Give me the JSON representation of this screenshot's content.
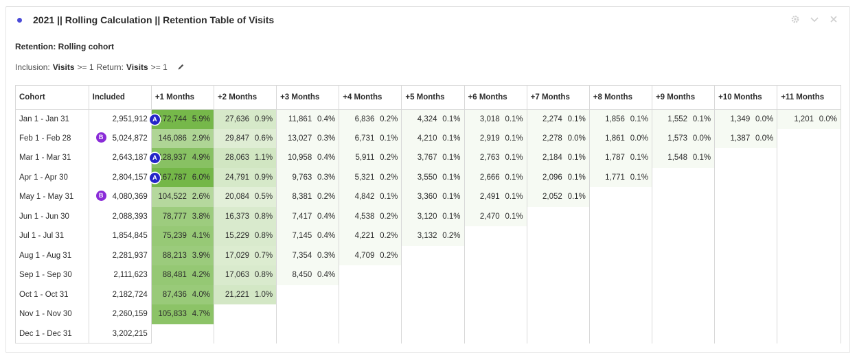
{
  "panel": {
    "title": "2021 || Rolling Calculation || Retention Table of Visits",
    "icons": [
      "gear-icon",
      "chevron-down-icon",
      "close-icon"
    ]
  },
  "retention": {
    "subtitle": "Retention: Rolling cohort",
    "inclusion_label": "Inclusion:",
    "inclusion_metric": "Visits",
    "inclusion_cond": ">= 1",
    "return_label": "Return:",
    "return_metric": "Visits",
    "return_cond": ">= 1"
  },
  "table": {
    "headers": [
      "Cohort",
      "Included",
      "+1 Months",
      "+2 Months",
      "+3 Months",
      "+4 Months",
      "+5 Months",
      "+6 Months",
      "+7 Months",
      "+8 Months",
      "+9 Months",
      "+10 Months",
      "+11 Months"
    ],
    "rows": [
      {
        "cohort": "Jan 1 - Jan 31",
        "included": "2,951,912",
        "badge": "",
        "cells": [
          [
            "172,744",
            "5.9%",
            "A"
          ],
          [
            "27,636",
            "0.9%",
            ""
          ],
          [
            "11,861",
            "0.4%",
            ""
          ],
          [
            "6,836",
            "0.2%",
            ""
          ],
          [
            "4,324",
            "0.1%",
            ""
          ],
          [
            "3,018",
            "0.1%",
            ""
          ],
          [
            "2,274",
            "0.1%",
            ""
          ],
          [
            "1,856",
            "0.1%",
            ""
          ],
          [
            "1,552",
            "0.1%",
            ""
          ],
          [
            "1,349",
            "0.0%",
            ""
          ],
          [
            "1,201",
            "0.0%",
            ""
          ]
        ]
      },
      {
        "cohort": "Feb 1 - Feb 28",
        "included": "5,024,872",
        "badge": "B",
        "cells": [
          [
            "146,086",
            "2.9%",
            ""
          ],
          [
            "29,847",
            "0.6%",
            ""
          ],
          [
            "13,027",
            "0.3%",
            ""
          ],
          [
            "6,731",
            "0.1%",
            ""
          ],
          [
            "4,210",
            "0.1%",
            ""
          ],
          [
            "2,919",
            "0.1%",
            ""
          ],
          [
            "2,278",
            "0.0%",
            ""
          ],
          [
            "1,861",
            "0.0%",
            ""
          ],
          [
            "1,573",
            "0.0%",
            ""
          ],
          [
            "1,387",
            "0.0%",
            ""
          ]
        ]
      },
      {
        "cohort": "Mar 1 - Mar 31",
        "included": "2,643,187",
        "badge": "",
        "cells": [
          [
            "128,937",
            "4.9%",
            "A"
          ],
          [
            "28,063",
            "1.1%",
            ""
          ],
          [
            "10,958",
            "0.4%",
            ""
          ],
          [
            "5,911",
            "0.2%",
            ""
          ],
          [
            "3,767",
            "0.1%",
            ""
          ],
          [
            "2,763",
            "0.1%",
            ""
          ],
          [
            "2,184",
            "0.1%",
            ""
          ],
          [
            "1,787",
            "0.1%",
            ""
          ],
          [
            "1,548",
            "0.1%",
            ""
          ]
        ]
      },
      {
        "cohort": "Apr 1 - Apr 30",
        "included": "2,804,157",
        "badge": "",
        "cells": [
          [
            "167,787",
            "6.0%",
            "A"
          ],
          [
            "24,791",
            "0.9%",
            ""
          ],
          [
            "9,763",
            "0.3%",
            ""
          ],
          [
            "5,321",
            "0.2%",
            ""
          ],
          [
            "3,550",
            "0.1%",
            ""
          ],
          [
            "2,666",
            "0.1%",
            ""
          ],
          [
            "2,096",
            "0.1%",
            ""
          ],
          [
            "1,771",
            "0.1%",
            ""
          ]
        ]
      },
      {
        "cohort": "May 1 - May 31",
        "included": "4,080,369",
        "badge": "B",
        "cells": [
          [
            "104,522",
            "2.6%",
            ""
          ],
          [
            "20,084",
            "0.5%",
            ""
          ],
          [
            "8,381",
            "0.2%",
            ""
          ],
          [
            "4,842",
            "0.1%",
            ""
          ],
          [
            "3,360",
            "0.1%",
            ""
          ],
          [
            "2,491",
            "0.1%",
            ""
          ],
          [
            "2,052",
            "0.1%",
            ""
          ]
        ]
      },
      {
        "cohort": "Jun 1 - Jun 30",
        "included": "2,088,393",
        "badge": "",
        "cells": [
          [
            "78,777",
            "3.8%",
            ""
          ],
          [
            "16,373",
            "0.8%",
            ""
          ],
          [
            "7,417",
            "0.4%",
            ""
          ],
          [
            "4,538",
            "0.2%",
            ""
          ],
          [
            "3,120",
            "0.1%",
            ""
          ],
          [
            "2,470",
            "0.1%",
            ""
          ]
        ]
      },
      {
        "cohort": "Jul 1 - Jul 31",
        "included": "1,854,845",
        "badge": "",
        "cells": [
          [
            "75,239",
            "4.1%",
            ""
          ],
          [
            "15,229",
            "0.8%",
            ""
          ],
          [
            "7,145",
            "0.4%",
            ""
          ],
          [
            "4,221",
            "0.2%",
            ""
          ],
          [
            "3,132",
            "0.2%",
            ""
          ]
        ]
      },
      {
        "cohort": "Aug 1 - Aug 31",
        "included": "2,281,937",
        "badge": "",
        "cells": [
          [
            "88,213",
            "3.9%",
            ""
          ],
          [
            "17,029",
            "0.7%",
            ""
          ],
          [
            "7,354",
            "0.3%",
            ""
          ],
          [
            "4,709",
            "0.2%",
            ""
          ]
        ]
      },
      {
        "cohort": "Sep 1 - Sep 30",
        "included": "2,111,623",
        "badge": "",
        "cells": [
          [
            "88,481",
            "4.2%",
            ""
          ],
          [
            "17,063",
            "0.8%",
            ""
          ],
          [
            "8,450",
            "0.4%",
            ""
          ]
        ]
      },
      {
        "cohort": "Oct 1 - Oct 31",
        "included": "2,182,724",
        "badge": "",
        "cells": [
          [
            "87,436",
            "4.0%",
            ""
          ],
          [
            "21,221",
            "1.0%",
            ""
          ]
        ]
      },
      {
        "cohort": "Nov 1 - Nov 30",
        "included": "2,260,159",
        "badge": "",
        "cells": [
          [
            "105,833",
            "4.7%",
            ""
          ]
        ]
      },
      {
        "cohort": "Dec 1 - Dec 31",
        "included": "3,202,215",
        "badge": "",
        "cells": []
      }
    ]
  }
}
